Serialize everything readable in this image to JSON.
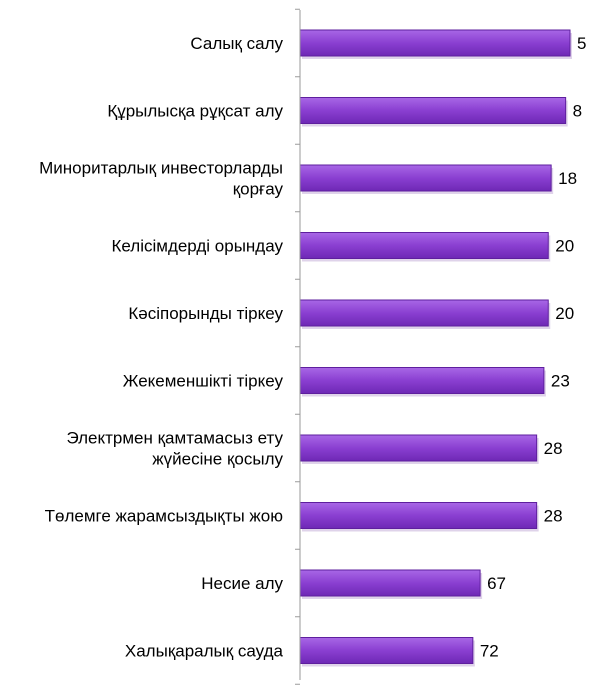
{
  "chart_data": {
    "type": "bar",
    "orientation": "horizontal",
    "title": "",
    "xlabel": "",
    "ylabel": "",
    "categories": [
      [
        "Салық салу"
      ],
      [
        "Құрылысқа рұқсат алу"
      ],
      [
        "Миноритарлық инвесторларды",
        "қорғау"
      ],
      [
        "Келісімдерді орындау"
      ],
      [
        "Кәсіпорынды тіркеу"
      ],
      [
        "Жекеменшікті тіркеу"
      ],
      [
        "Электрмен қамтамасыз ету",
        "жүйесіне қосылу"
      ],
      [
        "Төлемге жарамсыздықты жою"
      ],
      [
        "Несие алу"
      ],
      [
        "Халықаралық сауда"
      ]
    ],
    "values": [
      5,
      8,
      18,
      20,
      20,
      23,
      28,
      28,
      67,
      72
    ],
    "value_labels": [
      "5",
      "8",
      "18",
      "20",
      "20",
      "23",
      "28",
      "28",
      "67",
      "72"
    ],
    "axis_reversed": true,
    "grid": false,
    "legend": "none",
    "colors": {
      "bar_fill": "#8A3FD1",
      "bar_stroke": "#5E1F9E",
      "axis": "#9a9a9a"
    }
  }
}
